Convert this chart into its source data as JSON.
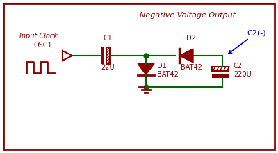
{
  "background_color": "#ffffff",
  "border_color": "#8b0000",
  "dark_red": "#8b0000",
  "green": "#006400",
  "blue": "#0000cd",
  "title": "Negative Voltage Output",
  "label_input_clock": "Input Clock",
  "label_osc1": "OSC1",
  "label_c1": "C1",
  "label_22u": "22U",
  "label_d2": "D2",
  "label_bat42_d2": "BAT42",
  "label_d1": "D1",
  "label_bat42_d1": "BAT42",
  "label_c2": "C2",
  "label_220u": "220U",
  "label_c2neg": "C2(-)"
}
